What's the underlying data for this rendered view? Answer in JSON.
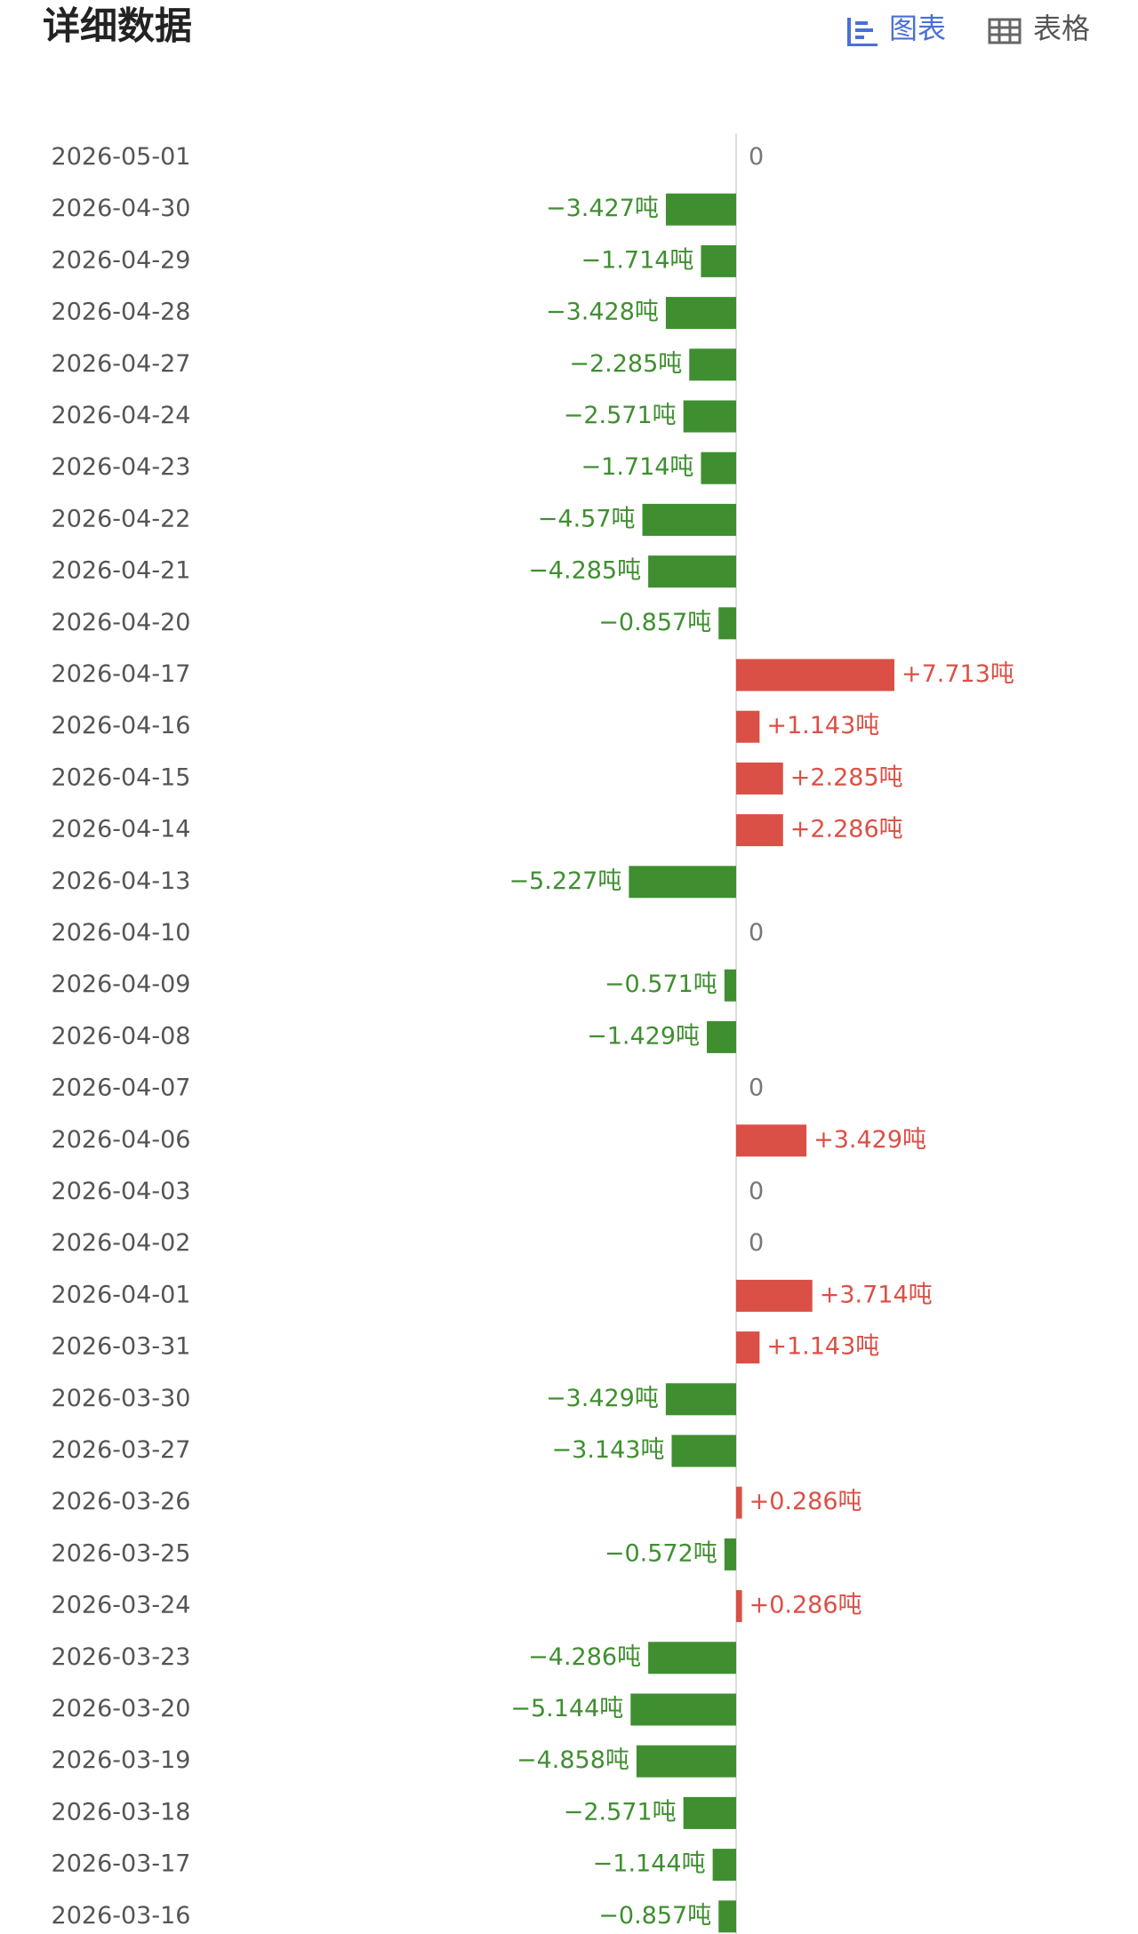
{
  "header": {
    "title": "详细数据",
    "tabs": [
      "图表",
      "表格"
    ]
  },
  "chart_data": {
    "type": "hbar",
    "categories": [
      "2026-05-01",
      "2026-04-30",
      "2026-04-29",
      "2026-04-28",
      "2026-04-27",
      "2026-04-24",
      "2026-04-23",
      "2026-04-22",
      "2026-04-21",
      "2026-04-20",
      "2026-04-17",
      "2026-04-16",
      "2026-04-15",
      "2026-04-14",
      "2026-04-13",
      "2026-04-10",
      "2026-04-09",
      "2026-04-08",
      "2026-04-07",
      "2026-04-06",
      "2026-04-03",
      "2026-04-02",
      "2026-04-01",
      "2026-03-31",
      "2026-03-30",
      "2026-03-27",
      "2026-03-26",
      "2026-03-25",
      "2026-03-24",
      "2026-03-23",
      "2026-03-20",
      "2026-03-19",
      "2026-03-18",
      "2026-03-17",
      "2026-03-16"
    ],
    "values": [
      0,
      -3.427,
      -1.714,
      -3.428,
      -2.285,
      -2.571,
      -1.714,
      -4.57,
      -4.285,
      -0.857,
      7.713,
      1.143,
      2.285,
      2.286,
      -5.227,
      0,
      -0.571,
      -1.429,
      0,
      3.429,
      0,
      0,
      3.714,
      1.143,
      -3.429,
      -3.143,
      0.286,
      -0.572,
      0.286,
      -4.286,
      -5.144,
      -4.858,
      -2.571,
      -1.144,
      -0.857
    ],
    "value_labels": [
      "0",
      "−3.427吨",
      "−1.714吨",
      "−3.428吨",
      "−2.285吨",
      "−2.571吨",
      "−1.714吨",
      "−4.57吨",
      "−4.285吨",
      "−0.857吨",
      "+7.713吨",
      "+1.143吨",
      "+2.285吨",
      "+2.286吨",
      "−5.227吨",
      "0",
      "−0.571吨",
      "−1.429吨",
      "0",
      "+3.429吨",
      "0",
      "0",
      "+3.714吨",
      "+1.143吨",
      "−3.429吨",
      "−3.143吨",
      "+0.286吨",
      "−0.572吨",
      "+0.286吨",
      "−4.286吨",
      "−5.144吨",
      "−4.858吨",
      "−2.571吨",
      "−1.144吨",
      "−0.857吨"
    ],
    "positive_color": "#db5046",
    "negative_color": "#3f8f30"
  }
}
